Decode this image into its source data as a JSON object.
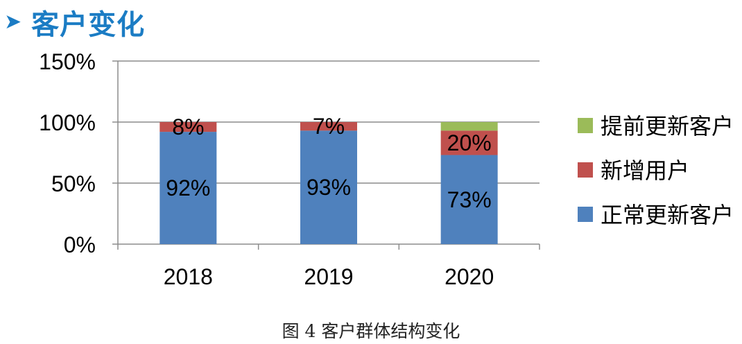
{
  "header": {
    "arrow_icon": "triangle-right-icon",
    "title": "客户变化"
  },
  "caption": "图 4  客户群体结构变化",
  "chart_data": {
    "type": "bar",
    "stacked": true,
    "categories": [
      "2018",
      "2019",
      "2020"
    ],
    "ylim": [
      0,
      150
    ],
    "yticks": [
      "0%",
      "50%",
      "100%",
      "150%"
    ],
    "yticks_values": [
      0,
      50,
      100,
      150
    ],
    "legend_position": "right",
    "series": [
      {
        "name": "正常更新客户",
        "color": "#4f81bd",
        "values": [
          92,
          93,
          73
        ],
        "labels": [
          "92%",
          "93%",
          "73%"
        ]
      },
      {
        "name": "新增用户",
        "color": "#c0504d",
        "values": [
          8,
          7,
          20
        ],
        "labels": [
          "8%",
          "7%",
          "20%"
        ]
      },
      {
        "name": "提前更新客户",
        "color": "#9bbb59",
        "values": [
          0,
          0,
          7
        ],
        "labels": [
          "",
          "",
          ""
        ]
      }
    ],
    "legend_order": [
      2,
      1,
      0
    ]
  }
}
